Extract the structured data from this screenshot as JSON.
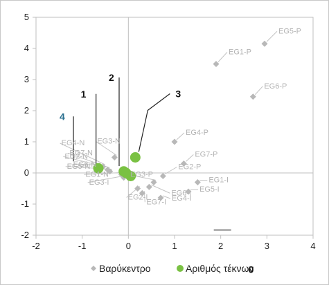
{
  "chart_data": {
    "type": "scatter",
    "title": "",
    "xlabel": "",
    "ylabel": "",
    "xlim": [
      -2,
      4
    ],
    "ylim": [
      -2,
      5
    ],
    "x_ticks": [
      "-2",
      "-1",
      "0",
      "1",
      "2",
      "3",
      "4"
    ],
    "y_ticks": [
      "-2",
      "-1",
      "0",
      "1",
      "2",
      "3",
      "4",
      "5"
    ],
    "grid": false,
    "legend_position": "bottom",
    "series": [
      {
        "name": "Βαρύκεντρο",
        "color": "#b8b8b8",
        "marker": "diamond",
        "points": [
          {
            "label": "EG5-P",
            "x": 2.95,
            "y": 4.15
          },
          {
            "label": "EG1-P",
            "x": 1.9,
            "y": 3.5
          },
          {
            "label": "EG6-P",
            "x": 2.7,
            "y": 2.45
          },
          {
            "label": "EG4-P",
            "x": 1.0,
            "y": 1.0
          },
          {
            "label": "EG7-P",
            "x": 1.2,
            "y": 0.3
          },
          {
            "label": "EG2-P",
            "x": 0.75,
            "y": -0.1
          },
          {
            "label": "EG3-P",
            "x": 0.55,
            "y": -0.3
          },
          {
            "label": "EG1-I",
            "x": 1.5,
            "y": -0.3
          },
          {
            "label": "EG5-I",
            "x": 1.3,
            "y": -0.6
          },
          {
            "label": "EG6-I",
            "x": 0.45,
            "y": -0.45
          },
          {
            "label": "EG4-I",
            "x": 0.7,
            "y": -0.8
          },
          {
            "label": "EG7-I",
            "x": 0.3,
            "y": -0.65
          },
          {
            "label": "EG2-I",
            "x": 0.2,
            "y": -0.5
          },
          {
            "label": "EG3-I",
            "x": -0.1,
            "y": -0.15
          },
          {
            "label": "EG1-N",
            "x": -0.15,
            "y": -0.05
          },
          {
            "label": "EG3-N",
            "x": -0.3,
            "y": 0.5
          },
          {
            "label": "EG4-N",
            "x": -0.55,
            "y": 0.2
          },
          {
            "label": "EG7-N",
            "x": -0.45,
            "y": 0.1
          },
          {
            "label": "EG2-N",
            "x": -0.6,
            "y": 0.15
          },
          {
            "label": "EG5-N",
            "x": -0.4,
            "y": 0.05
          },
          {
            "label": "EG6-N",
            "x": -0.7,
            "y": 0.2
          }
        ]
      },
      {
        "name": "Αριθμός τέκνων",
        "color": "#7ac143",
        "marker": "circle",
        "points": [
          {
            "label": "0",
            "x": 0.05,
            "y": -0.1,
            "label_color": "#111111"
          },
          {
            "label": "1",
            "x": -0.1,
            "y": 0.05,
            "label_color": "#111111"
          },
          {
            "label": "2",
            "x": -0.05,
            "y": 0.0,
            "label_color": "#111111"
          },
          {
            "label": "3",
            "x": 0.15,
            "y": 0.5,
            "label_color": "#111111"
          },
          {
            "label": "4",
            "x": -0.65,
            "y": 0.15,
            "label_color": "#2a6f8f"
          }
        ]
      }
    ]
  }
}
